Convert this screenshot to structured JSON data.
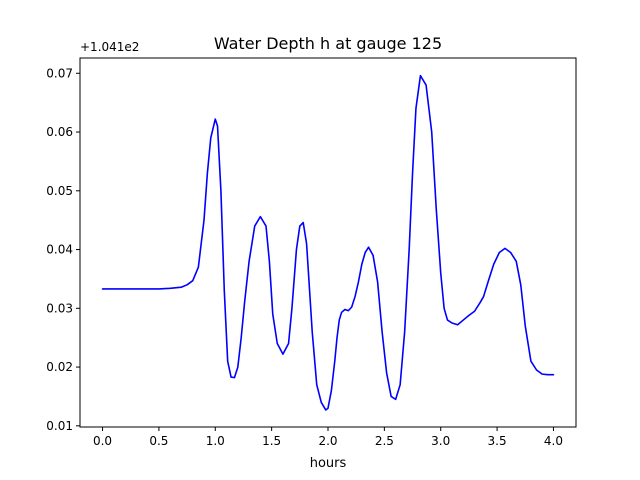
{
  "chart_data": {
    "type": "line",
    "title": "Water Depth h at gauge 125",
    "xlabel": "hours",
    "ylabel": "",
    "offset_label": "+1.041e2",
    "xlim": [
      -0.2,
      4.2
    ],
    "ylim": [
      0.0098,
      0.0726
    ],
    "xticks": [
      0.0,
      0.5,
      1.0,
      1.5,
      2.0,
      2.5,
      3.0,
      3.5,
      4.0
    ],
    "xtick_labels": [
      "0.0",
      "0.5",
      "1.0",
      "1.5",
      "2.0",
      "2.5",
      "3.0",
      "3.5",
      "4.0"
    ],
    "yticks": [
      0.01,
      0.02,
      0.03,
      0.04,
      0.05,
      0.06,
      0.07
    ],
    "ytick_labels": [
      "0.01",
      "0.02",
      "0.03",
      "0.04",
      "0.05",
      "0.06",
      "0.07"
    ],
    "grid": false,
    "series": [
      {
        "color": "#0000ff",
        "x": [
          0.0,
          0.1,
          0.2,
          0.3,
          0.4,
          0.5,
          0.6,
          0.7,
          0.75,
          0.8,
          0.85,
          0.9,
          0.93,
          0.96,
          1.0,
          1.02,
          1.05,
          1.08,
          1.11,
          1.14,
          1.17,
          1.2,
          1.23,
          1.26,
          1.3,
          1.35,
          1.4,
          1.45,
          1.48,
          1.51,
          1.55,
          1.6,
          1.65,
          1.68,
          1.72,
          1.75,
          1.78,
          1.81,
          1.83,
          1.86,
          1.9,
          1.94,
          1.98,
          2.0,
          2.03,
          2.06,
          2.08,
          2.1,
          2.12,
          2.15,
          2.18,
          2.21,
          2.24,
          2.27,
          2.3,
          2.33,
          2.36,
          2.4,
          2.44,
          2.48,
          2.52,
          2.56,
          2.6,
          2.64,
          2.68,
          2.72,
          2.75,
          2.78,
          2.82,
          2.87,
          2.92,
          2.96,
          3.0,
          3.03,
          3.06,
          3.1,
          3.15,
          3.2,
          3.25,
          3.3,
          3.35,
          3.38,
          3.42,
          3.47,
          3.52,
          3.57,
          3.62,
          3.67,
          3.71,
          3.75,
          3.8,
          3.85,
          3.9,
          3.95,
          4.0
        ],
        "y": [
          0.0333,
          0.0333,
          0.0333,
          0.0333,
          0.0333,
          0.0333,
          0.0334,
          0.0336,
          0.034,
          0.0347,
          0.037,
          0.045,
          0.053,
          0.059,
          0.0622,
          0.061,
          0.05,
          0.033,
          0.021,
          0.0183,
          0.0182,
          0.02,
          0.025,
          0.031,
          0.038,
          0.044,
          0.0456,
          0.044,
          0.038,
          0.029,
          0.024,
          0.0222,
          0.024,
          0.03,
          0.04,
          0.044,
          0.0446,
          0.041,
          0.035,
          0.026,
          0.017,
          0.014,
          0.0127,
          0.013,
          0.016,
          0.021,
          0.025,
          0.028,
          0.0293,
          0.0298,
          0.0296,
          0.0302,
          0.032,
          0.0345,
          0.0375,
          0.0395,
          0.0404,
          0.039,
          0.0345,
          0.026,
          0.019,
          0.015,
          0.0145,
          0.017,
          0.026,
          0.04,
          0.053,
          0.064,
          0.0696,
          0.068,
          0.06,
          0.047,
          0.036,
          0.03,
          0.028,
          0.0275,
          0.0272,
          0.028,
          0.0288,
          0.0295,
          0.031,
          0.032,
          0.0345,
          0.0375,
          0.0395,
          0.0402,
          0.0395,
          0.038,
          0.034,
          0.027,
          0.021,
          0.0195,
          0.0188,
          0.0187,
          0.0187
        ]
      }
    ]
  }
}
